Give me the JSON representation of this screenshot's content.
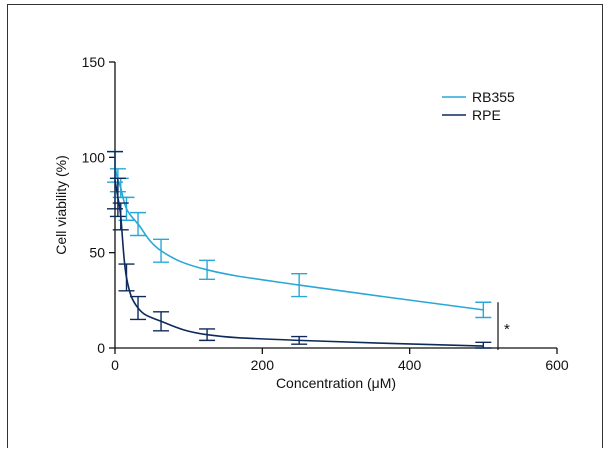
{
  "chart_data": {
    "type": "line",
    "xlabel": "Concentration (μM)",
    "ylabel": "Cell viability (%)",
    "xlim": [
      0,
      600
    ],
    "ylim": [
      0,
      150
    ],
    "xticks": [
      0,
      200,
      400,
      600
    ],
    "yticks": [
      0,
      50,
      100,
      150
    ],
    "x_tick_labels": [
      "0",
      "200",
      "400",
      "600"
    ],
    "y_tick_labels": [
      "0",
      "50",
      "100",
      "150"
    ],
    "grid": false,
    "legend_position": "top-right",
    "significance_marker": "*",
    "series": [
      {
        "name": "RB355",
        "color": "#29a8d8",
        "x": [
          0,
          3.9,
          7.8,
          15.6,
          31.25,
          62.5,
          125,
          250,
          500
        ],
        "y": [
          95,
          88,
          84,
          73,
          65,
          51,
          41,
          33,
          20
        ],
        "err": [
          8,
          6,
          5,
          6,
          6,
          6,
          5,
          6,
          4
        ]
      },
      {
        "name": "RPE",
        "color": "#0e2a5a",
        "x": [
          0,
          3.9,
          7.8,
          15.6,
          31.25,
          62.5,
          125,
          250,
          500
        ],
        "y": [
          88,
          79,
          69,
          37,
          21,
          14,
          7,
          4,
          1
        ],
        "err": [
          15,
          10,
          7,
          7,
          6,
          5,
          3,
          2,
          2
        ]
      }
    ]
  }
}
